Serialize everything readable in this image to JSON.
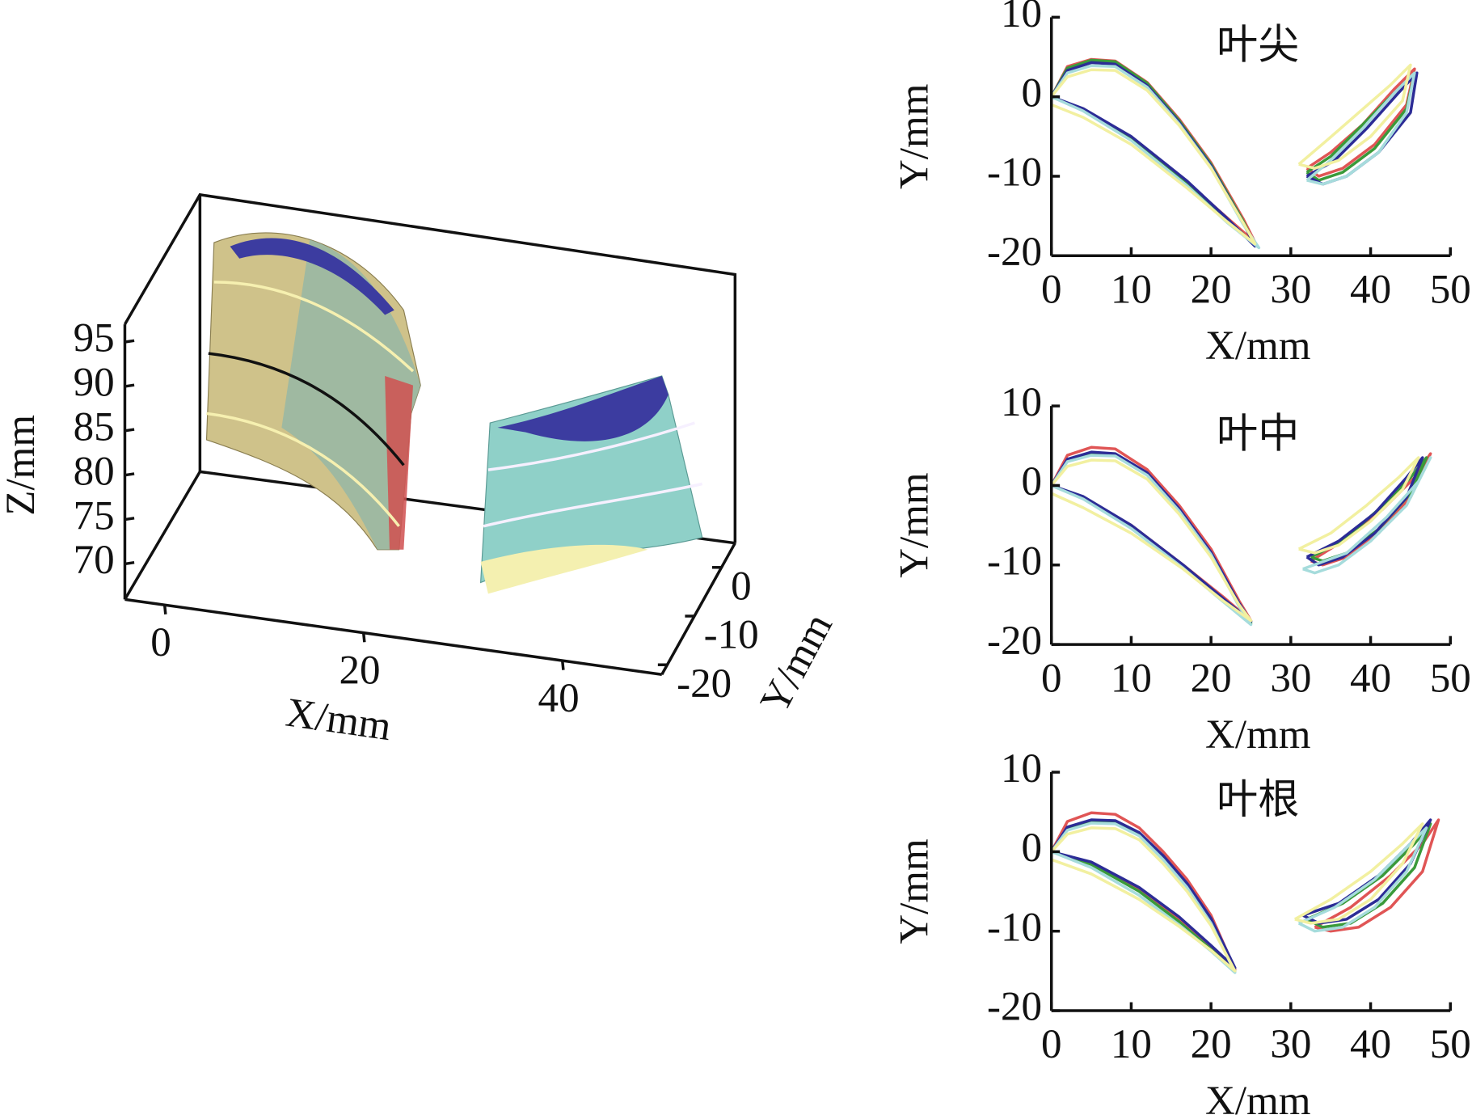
{
  "chart_data": [
    {
      "type": "surface3d",
      "xlabel": "X/mm",
      "ylabel": "Y/mm",
      "zlabel": "Z/mm",
      "xlim": [
        -4,
        50
      ],
      "xticks": [
        0,
        20,
        40
      ],
      "ylim": [
        -22,
        5
      ],
      "yticks": [
        0,
        -10,
        -20
      ],
      "zlim": [
        66,
        97
      ],
      "zticks": [
        70,
        75,
        80,
        85,
        90,
        95
      ]
    },
    {
      "type": "line",
      "title": "叶尖",
      "xlabel": "X/mm",
      "ylabel": "Y/mm",
      "xlim": [
        0,
        50
      ],
      "xticks": [
        0,
        10,
        20,
        30,
        40,
        50
      ],
      "ylim": [
        -20,
        10
      ],
      "yticks": [
        -20,
        -10,
        0,
        10
      ],
      "series": [
        {
          "color": "#e05555",
          "x": [
            0,
            2,
            5,
            8,
            12,
            16,
            20,
            24,
            25.5,
            22,
            17,
            10,
            4,
            0,
            null,
            32,
            33.5,
            36.5,
            40.5,
            44.5,
            45.5,
            43,
            39,
            35,
            32
          ],
          "values": [
            0,
            3.8,
            4.7,
            4.5,
            1.8,
            -2.8,
            -8.3,
            -15.3,
            -18.3,
            -15.2,
            -10.8,
            -5.2,
            -1.6,
            0,
            null,
            -9,
            -10,
            -9,
            -6,
            -1,
            3.5,
            1,
            -3.5,
            -7,
            -9
          ]
        },
        {
          "color": "#3a9a3a",
          "x": [
            0,
            2,
            5,
            8,
            12,
            16,
            20,
            24,
            25.5,
            22,
            17,
            10,
            4,
            0,
            null,
            32,
            33.5,
            36.5,
            40.5,
            44.5,
            45.5,
            43,
            39,
            35,
            32
          ],
          "values": [
            0,
            3.6,
            4.6,
            4.4,
            1.7,
            -3,
            -8.5,
            -15.6,
            -18.6,
            -15.5,
            -11,
            -5.3,
            -1.7,
            0,
            null,
            -9.5,
            -10.5,
            -9.5,
            -6.5,
            -1.5,
            3,
            0.5,
            -3.5,
            -7.5,
            -9.5
          ]
        },
        {
          "color": "#2c2c96",
          "x": [
            0,
            2,
            5,
            8,
            12,
            16,
            20,
            24,
            25.5,
            22,
            17,
            10,
            4,
            0,
            null,
            32,
            34,
            37,
            41,
            45,
            45.8,
            43.5,
            39.5,
            35.5,
            32
          ],
          "values": [
            0,
            3.3,
            4.3,
            4.1,
            1.4,
            -3.2,
            -8.7,
            -15.8,
            -18.8,
            -15.3,
            -10.6,
            -5,
            -1.5,
            0,
            null,
            -10,
            -11,
            -10,
            -7,
            -2,
            3,
            0.5,
            -4,
            -8,
            -10
          ]
        },
        {
          "color": "#a6dcdc",
          "x": [
            0,
            2,
            5,
            8,
            12,
            16,
            20,
            24,
            26,
            22,
            17,
            10,
            4,
            0,
            null,
            32,
            34,
            37,
            41,
            44.5,
            45.5,
            43,
            39,
            35,
            32
          ],
          "values": [
            0,
            3,
            3.9,
            3.8,
            1.2,
            -3.4,
            -8.9,
            -16,
            -19,
            -15.8,
            -11.2,
            -5.5,
            -1.8,
            0,
            null,
            -10.5,
            -11,
            -10,
            -7,
            -2,
            3,
            0.5,
            -4,
            -8,
            -10.5
          ]
        },
        {
          "color": "#f2f0a0",
          "x": [
            0,
            2,
            5,
            8,
            12,
            16,
            20,
            24,
            25.5,
            22,
            17,
            10,
            4,
            0,
            null,
            31,
            33,
            36,
            40,
            44,
            45,
            42.5,
            38.5,
            34.5,
            31
          ],
          "values": [
            0,
            2.5,
            3.4,
            3.3,
            0.8,
            -3.6,
            -9,
            -15.8,
            -18.5,
            -15.7,
            -11.5,
            -6,
            -2.6,
            -1,
            null,
            -8.5,
            -9,
            -8,
            -5,
            -0.5,
            4,
            1.5,
            -2,
            -5.5,
            -8.5
          ]
        }
      ]
    },
    {
      "type": "line",
      "title": "叶中",
      "xlabel": "X/mm",
      "ylabel": "Y/mm",
      "xlim": [
        0,
        50
      ],
      "xticks": [
        0,
        10,
        20,
        30,
        40,
        50
      ],
      "ylim": [
        -20,
        10
      ],
      "yticks": [
        -20,
        -10,
        0,
        10
      ],
      "series": [
        {
          "color": "#e05555",
          "x": [
            0,
            2,
            5,
            8,
            12,
            16,
            20,
            23.5,
            25,
            21.5,
            16.5,
            10,
            4,
            0,
            null,
            32.5,
            34,
            37,
            41,
            45,
            47.5,
            45.5,
            41.5,
            36.5,
            32.5
          ],
          "values": [
            0,
            3.8,
            4.8,
            4.6,
            2,
            -2.5,
            -8,
            -14.5,
            -17,
            -14,
            -10,
            -5,
            -1.6,
            0,
            null,
            -9.5,
            -10,
            -9,
            -6,
            -1.5,
            4,
            1,
            -3,
            -7,
            -9.5
          ]
        },
        {
          "color": "#3a9a3a",
          "x": [
            0,
            2,
            5,
            8,
            12,
            16,
            20,
            23.5,
            25,
            21.5,
            16.5,
            10,
            4,
            0,
            null,
            32.5,
            34,
            37,
            41,
            45,
            47,
            45,
            41,
            36.5,
            32.5
          ],
          "values": [
            0,
            3.2,
            4,
            3.9,
            1.5,
            -3,
            -8.5,
            -15,
            -17.3,
            -14.5,
            -10.2,
            -5.2,
            -1.5,
            0,
            null,
            -9,
            -9.5,
            -8.5,
            -5.5,
            -1,
            3.5,
            1,
            -3,
            -7,
            -9
          ]
        },
        {
          "color": "#2c2c96",
          "x": [
            0,
            2,
            5,
            8,
            12,
            16,
            20,
            23.5,
            25,
            21.5,
            16.5,
            10,
            4,
            0,
            null,
            32,
            33.5,
            36.5,
            40.5,
            44.5,
            46.5,
            44.5,
            40.5,
            36,
            32
          ],
          "values": [
            0,
            3.3,
            4.2,
            4,
            1.6,
            -2.9,
            -8.4,
            -14.8,
            -17.1,
            -14.2,
            -10,
            -5,
            -1.4,
            0,
            null,
            -9,
            -10,
            -9,
            -6,
            -1.5,
            3.5,
            1,
            -3.5,
            -7,
            -9
          ]
        },
        {
          "color": "#a6dcdc",
          "x": [
            0,
            2,
            5,
            8,
            12,
            16,
            20,
            23.5,
            25,
            21.5,
            16.5,
            10,
            4,
            0,
            null,
            31.5,
            33,
            36,
            40,
            44.5,
            47.5,
            46,
            42,
            37,
            31.5
          ],
          "values": [
            0,
            3,
            3.8,
            3.7,
            1.3,
            -3.2,
            -8.7,
            -15.2,
            -17.5,
            -14.6,
            -10.4,
            -5.4,
            -1.7,
            0,
            null,
            -10.5,
            -11,
            -10,
            -7,
            -2.5,
            3.5,
            0.5,
            -4,
            -8.5,
            -10.5
          ]
        },
        {
          "color": "#f2f0a0",
          "x": [
            0,
            2,
            5,
            8,
            12,
            16,
            20,
            23.5,
            25,
            21.5,
            16.5,
            10,
            4,
            0,
            null,
            31,
            33,
            36,
            40,
            44,
            46,
            43.5,
            39.5,
            35,
            31
          ],
          "values": [
            0,
            2.4,
            3.2,
            3.1,
            0.8,
            -3.6,
            -9,
            -15,
            -17,
            -14.5,
            -10.5,
            -6,
            -2.8,
            -1,
            null,
            -8,
            -8.5,
            -7.5,
            -4.5,
            -0.5,
            3.5,
            1,
            -2.5,
            -6,
            -8
          ]
        }
      ]
    },
    {
      "type": "line",
      "title": "叶根",
      "xlabel": "X/mm",
      "ylabel": "Y/mm",
      "xlim": [
        0,
        50
      ],
      "xticks": [
        0,
        10,
        20,
        30,
        40,
        50
      ],
      "ylim": [
        -20,
        10
      ],
      "yticks": [
        -20,
        -10,
        0,
        10
      ],
      "series": [
        {
          "color": "#e05555",
          "x": [
            0,
            2,
            5,
            8,
            11,
            14,
            17,
            20,
            23,
            20,
            16,
            11,
            5,
            0,
            null,
            33,
            35,
            38.5,
            42.5,
            46.5,
            48.5,
            46.5,
            42.5,
            37.5,
            33
          ],
          "values": [
            0,
            3.8,
            4.9,
            4.7,
            3,
            0,
            -3.5,
            -8,
            -14.8,
            -12,
            -8.5,
            -4.8,
            -1.5,
            0,
            null,
            -9.5,
            -10,
            -9.5,
            -7,
            -2.5,
            4,
            1,
            -3,
            -7,
            -9.5
          ]
        },
        {
          "color": "#3a9a3a",
          "x": [
            0,
            2,
            5,
            8,
            11,
            14,
            17,
            20,
            23,
            20,
            16,
            11,
            5,
            0,
            null,
            32,
            34,
            37.5,
            41.5,
            45.5,
            47.5,
            45.5,
            41.5,
            36.5,
            32
          ],
          "values": [
            0,
            3,
            3.9,
            3.8,
            2.3,
            -0.6,
            -4.2,
            -8.6,
            -15,
            -12.3,
            -8.8,
            -5,
            -1.6,
            0,
            null,
            -8.5,
            -9.5,
            -9,
            -6.5,
            -2,
            3.5,
            1,
            -3,
            -6.5,
            -8.5
          ]
        },
        {
          "color": "#2c2c96",
          "x": [
            0,
            2,
            5,
            8,
            11,
            14,
            17,
            20,
            23,
            20,
            16,
            11,
            5,
            0,
            null,
            31.5,
            33.5,
            37,
            41,
            45,
            47.5,
            45,
            41,
            36,
            31.5
          ],
          "values": [
            0,
            3.1,
            4,
            3.9,
            2.4,
            -0.5,
            -4,
            -8.4,
            -14.6,
            -11.8,
            -8.2,
            -4.5,
            -1.3,
            0,
            null,
            -8,
            -9,
            -8.5,
            -6,
            -1.5,
            4,
            1,
            -3,
            -6.5,
            -8
          ]
        },
        {
          "color": "#a6dcdc",
          "x": [
            0,
            2,
            5,
            8,
            11,
            14,
            17,
            20,
            23,
            20,
            16,
            11,
            5,
            0,
            null,
            31,
            33,
            36.5,
            40.5,
            44.5,
            47,
            44.5,
            40.5,
            35.5,
            31
          ],
          "values": [
            0,
            2.7,
            3.6,
            3.5,
            2,
            -1,
            -4.5,
            -9,
            -15.2,
            -12.5,
            -9.2,
            -5.5,
            -2,
            0,
            null,
            -9,
            -10,
            -9.5,
            -7,
            -2.5,
            3,
            0.5,
            -3.5,
            -7,
            -9
          ]
        },
        {
          "color": "#f2f0a0",
          "x": [
            0,
            2,
            5,
            8,
            11,
            14,
            17,
            20,
            23,
            20,
            16,
            11,
            5,
            0,
            null,
            30.5,
            32.5,
            36,
            40,
            44,
            46.5,
            44,
            40,
            35,
            30.5
          ],
          "values": [
            0,
            2.2,
            3,
            2.9,
            1.5,
            -1.5,
            -5,
            -9.3,
            -15,
            -12.4,
            -9.4,
            -6,
            -2.8,
            -1,
            null,
            -8.5,
            -9,
            -8.5,
            -6,
            -1.5,
            3.5,
            1,
            -2.5,
            -6,
            -8.5
          ]
        }
      ]
    }
  ]
}
